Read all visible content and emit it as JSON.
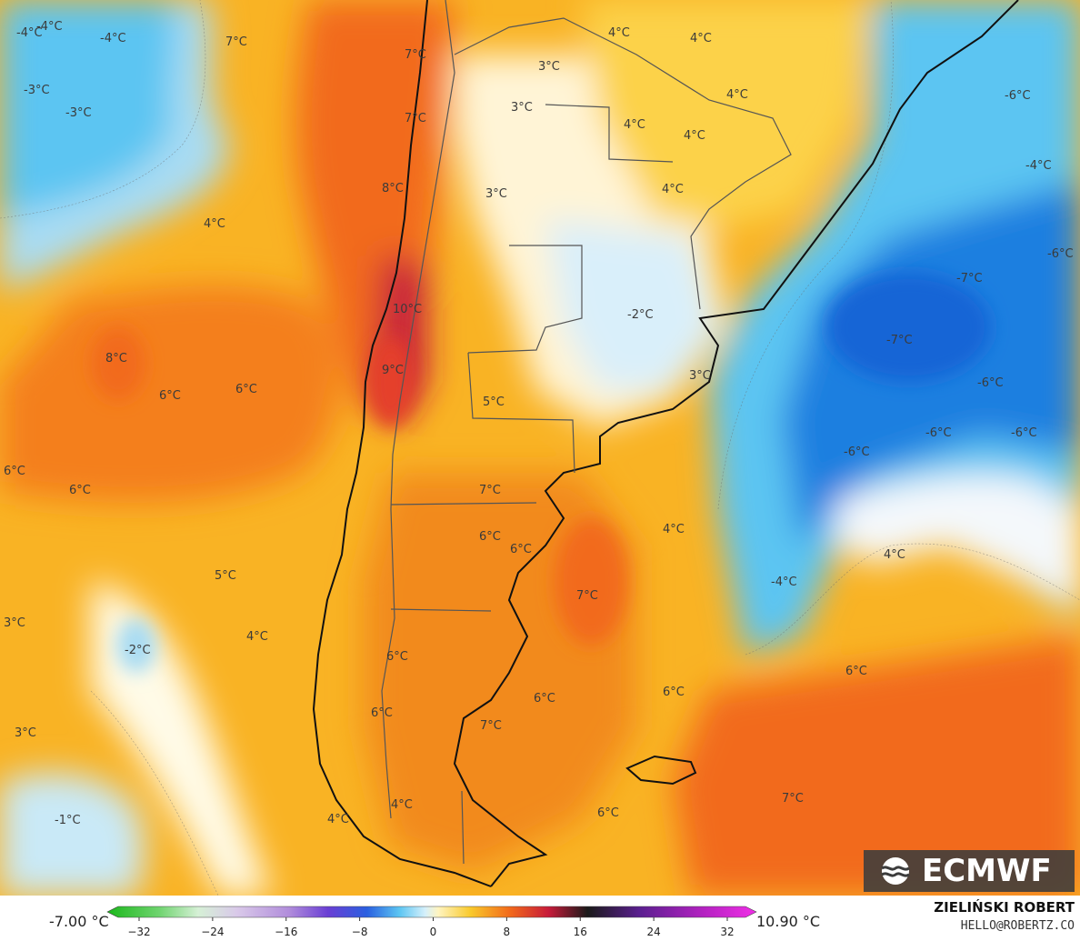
{
  "colors": {
    "ocean_warm": "#f7a21b",
    "warm_core": "#f26a1b",
    "hot_spot": "#c71b3a",
    "cool_light": "#a9dcf3",
    "cool_mid": "#5cc5f2",
    "cold_deep": "#1e7fe0",
    "neutral": "#ffffff",
    "land_border": "#1a1a1a"
  },
  "labels": [
    {
      "text": "-4°C"
    },
    {
      "text": "-4°C"
    },
    {
      "text": "-4°C"
    },
    {
      "text": "-3°C"
    },
    {
      "text": "-3°C"
    },
    {
      "text": "7°C"
    },
    {
      "text": "7°C"
    },
    {
      "text": "7°C"
    },
    {
      "text": "8°C"
    },
    {
      "text": "4°C"
    },
    {
      "text": "3°C"
    },
    {
      "text": "3°C"
    },
    {
      "text": "3°C"
    },
    {
      "text": "4°C"
    },
    {
      "text": "4°C"
    },
    {
      "text": "4°C"
    },
    {
      "text": "4°C"
    },
    {
      "text": "4°C"
    },
    {
      "text": "4°C"
    },
    {
      "text": "-6°C"
    },
    {
      "text": "-4°C"
    },
    {
      "text": "-6°C"
    },
    {
      "text": "-7°C"
    },
    {
      "text": "-7°C"
    },
    {
      "text": "-6°C"
    },
    {
      "text": "-6°C"
    },
    {
      "text": "-6°C"
    },
    {
      "text": "-6°C"
    },
    {
      "text": "10°C"
    },
    {
      "text": "-2°C"
    },
    {
      "text": "8°C"
    },
    {
      "text": "9°C"
    },
    {
      "text": "6°C"
    },
    {
      "text": "6°C"
    },
    {
      "text": "3°C"
    },
    {
      "text": "5°C"
    },
    {
      "text": "6°C"
    },
    {
      "text": "6°C"
    },
    {
      "text": "7°C"
    },
    {
      "text": "4°C"
    },
    {
      "text": "6°C"
    },
    {
      "text": "6°C"
    },
    {
      "text": "4°C"
    },
    {
      "text": "5°C"
    },
    {
      "text": "7°C"
    },
    {
      "text": "-4°C"
    },
    {
      "text": "3°C"
    },
    {
      "text": "4°C"
    },
    {
      "text": "-2°C"
    },
    {
      "text": "6°C"
    },
    {
      "text": "6°C"
    },
    {
      "text": "6°C"
    },
    {
      "text": "6°C"
    },
    {
      "text": "6°C"
    },
    {
      "text": "3°C"
    },
    {
      "text": "7°C"
    },
    {
      "text": "4°C"
    },
    {
      "text": "4°C"
    },
    {
      "text": "6°C"
    },
    {
      "text": "7°C"
    },
    {
      "text": "-1°C"
    }
  ],
  "legend": {
    "min_label": "-7.00 °C",
    "max_label": "10.90 °C",
    "ticks": [
      "−32",
      "−24",
      "−16",
      "−8",
      "0",
      "8",
      "16",
      "24",
      "32"
    ],
    "range": [
      -32,
      32
    ]
  },
  "brand": {
    "logo_text": "ECMWF",
    "author": "ZIELIŃSKI ROBERT",
    "email": "HELLO@ROBERTZ.CO"
  }
}
